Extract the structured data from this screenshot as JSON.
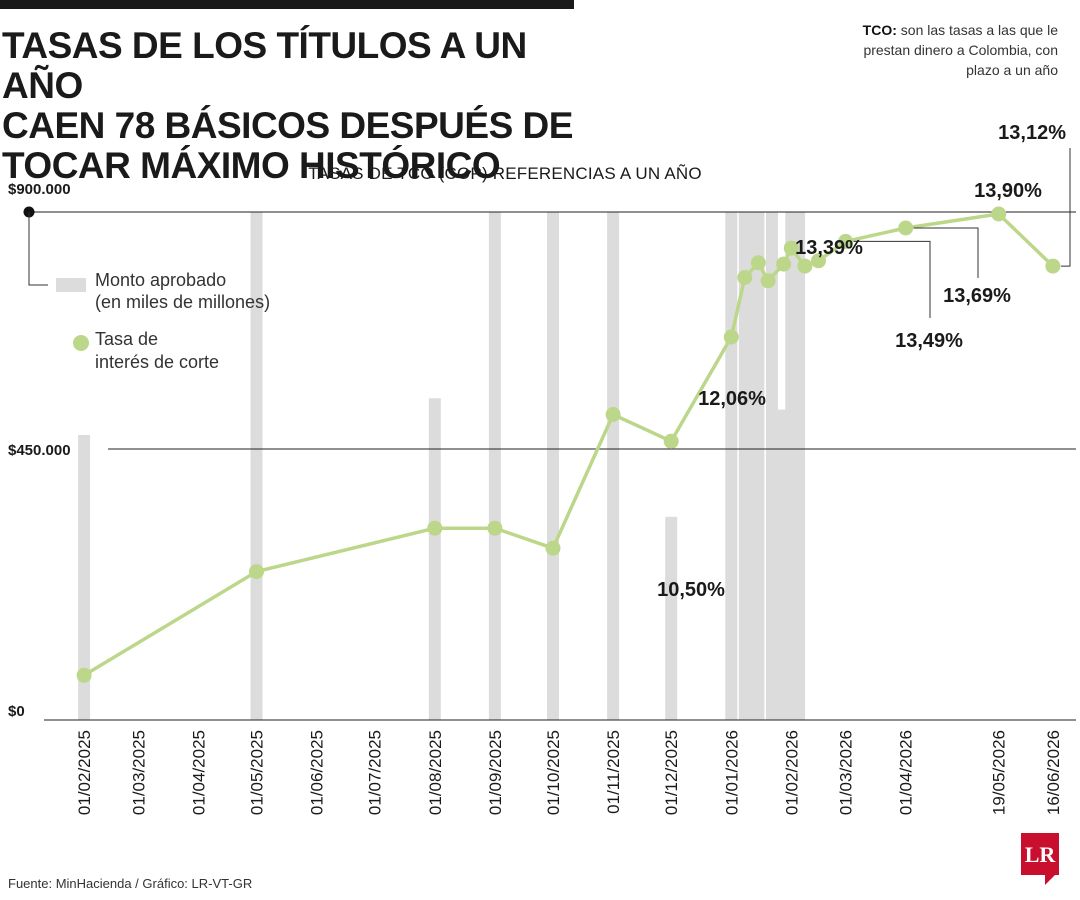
{
  "title_lines": [
    "TASAS DE LOS TÍTULOS A UN AÑO",
    "CAEN 78 BÁSICOS DESPUÉS DE",
    "TOCAR MÁXIMO HISTÓRICO"
  ],
  "note": {
    "term": "TCO:",
    "text": "son las tasas a las que le prestan dinero a Colombia, con plazo a un año"
  },
  "source": "Fuente: MinHacienda / Gráfico: LR-VT-GR",
  "logo": "LR",
  "colors": {
    "bars": "#dcdcdc",
    "line": "#bcd78a",
    "text": "#1a1a1a",
    "logo": "#c8102e"
  },
  "chart_data": {
    "type": "bar+line",
    "title": "TASAS DE TCO (COP) REFERENCIAS A UN AÑO",
    "y_ticks": [
      "$0",
      "$450.000",
      "$900.000"
    ],
    "ylim_amount": [
      0,
      900000
    ],
    "x_tick_labels": [
      "01/02/2025",
      "01/03/2025",
      "01/04/2025",
      "01/05/2025",
      "01/06/2025",
      "01/07/2025",
      "01/08/2025",
      "01/09/2025",
      "01/10/2025",
      "01/11/2025",
      "01/12/2025",
      "01/01/2026",
      "01/02/2026",
      "01/03/2026",
      "01/04/2026",
      "19/05/2026",
      "16/06/2026"
    ],
    "legend": [
      {
        "key": "bars",
        "label_lines": [
          "Monto aprobado",
          "(en miles de millones)"
        ]
      },
      {
        "key": "line",
        "label_lines": [
          "Tasa de",
          "interés de corte"
        ]
      }
    ],
    "bars": {
      "name": "Monto aprobado",
      "x": [
        "2025-02-01",
        "2025-05-01",
        "2025-08-01",
        "2025-09-01",
        "2025-10-01",
        "2025-11-01",
        "2025-12-01",
        "2026-01-01",
        "2026-01-08",
        "2026-01-13",
        "2026-01-15",
        "2026-01-22",
        "2026-01-28",
        "2026-02-01",
        "2026-02-03",
        "2026-02-05"
      ],
      "values": [
        505000,
        900000,
        570000,
        900000,
        900000,
        900000,
        360000,
        900000,
        900000,
        900000,
        900000,
        900000,
        550000,
        900000,
        900000,
        900000
      ]
    },
    "series": [
      {
        "name": "Tasa de interés de corte",
        "x": [
          "2025-02-01",
          "2025-05-01",
          "2025-08-01",
          "2025-09-01",
          "2025-10-01",
          "2025-11-01",
          "2025-12-01",
          "2026-01-01",
          "2026-01-08",
          "2026-01-15",
          "2026-01-20",
          "2026-01-28",
          "2026-02-01",
          "2026-02-08",
          "2026-02-15",
          "2026-03-01",
          "2026-04-01",
          "2026-05-19",
          "2026-06-16"
        ],
        "values": [
          7.0,
          8.55,
          9.2,
          9.2,
          8.9,
          10.9,
          10.5,
          12.06,
          12.95,
          13.17,
          12.9,
          13.15,
          13.39,
          13.12,
          13.2,
          13.49,
          13.69,
          13.9,
          13.12
        ]
      }
    ],
    "annotations": [
      {
        "text": "10,50%",
        "x": "2025-12-01"
      },
      {
        "text": "12,06%",
        "x": "2026-01-01"
      },
      {
        "text": "13,39%",
        "x": "2026-02-01"
      },
      {
        "text": "13,49%",
        "x": "2026-03-01"
      },
      {
        "text": "13,69%",
        "x": "2026-04-01"
      },
      {
        "text": "13,90%",
        "x": "2026-05-19"
      },
      {
        "text": "13,12%",
        "x": "2026-06-16"
      }
    ]
  }
}
